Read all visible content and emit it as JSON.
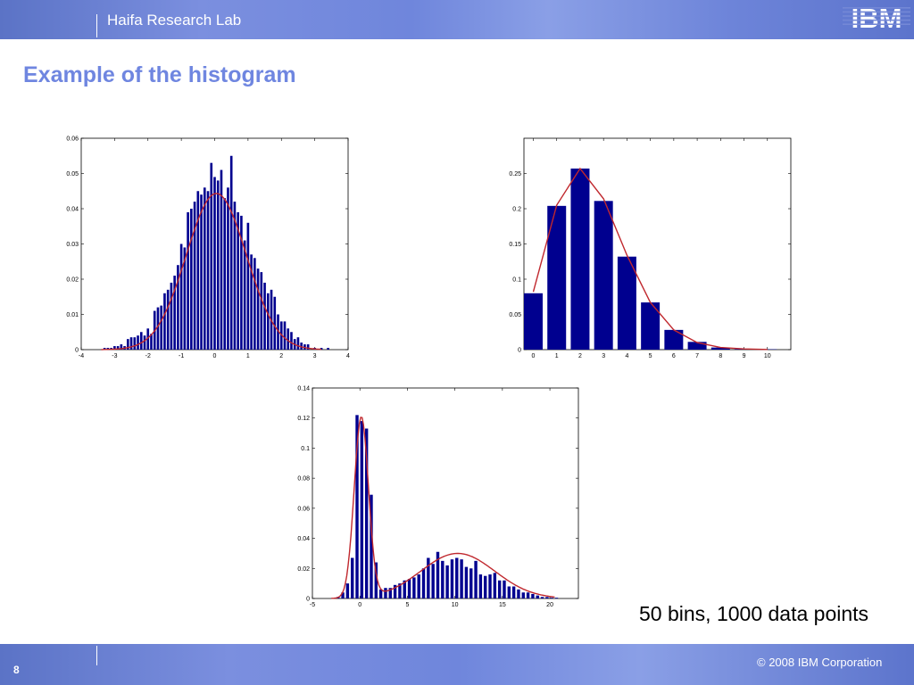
{
  "header": {
    "lab_name": "Haifa Research Lab",
    "logo_text": "IBM"
  },
  "slide": {
    "title": "Example of the histogram",
    "caption": "50 bins, 1000 data points"
  },
  "footer": {
    "page_number": "8",
    "copyright": "© 2008 IBM Corporation"
  },
  "colors": {
    "bar": "#00008f",
    "fit_line": "#c0282e",
    "title": "#6f86e0"
  },
  "chart_data": [
    {
      "type": "bar",
      "name": "normal-histogram",
      "xlim": [
        -4,
        4
      ],
      "ylim": [
        0,
        0.06
      ],
      "xticks": [
        -4,
        -3,
        -2,
        -1,
        0,
        1,
        2,
        3,
        4
      ],
      "yticks": [
        0,
        0.01,
        0.02,
        0.03,
        0.04,
        0.05,
        0.06
      ],
      "x": [
        -3.3,
        -3.2,
        -3.1,
        -3.0,
        -2.9,
        -2.8,
        -2.7,
        -2.6,
        -2.5,
        -2.4,
        -2.3,
        -2.2,
        -2.1,
        -2.0,
        -1.9,
        -1.8,
        -1.7,
        -1.6,
        -1.5,
        -1.4,
        -1.3,
        -1.2,
        -1.1,
        -1.0,
        -0.9,
        -0.8,
        -0.7,
        -0.6,
        -0.5,
        -0.4,
        -0.3,
        -0.2,
        -0.1,
        0.0,
        0.1,
        0.2,
        0.3,
        0.4,
        0.5,
        0.6,
        0.7,
        0.8,
        0.9,
        1.0,
        1.1,
        1.2,
        1.3,
        1.4,
        1.5,
        1.6,
        1.7,
        1.8,
        1.9,
        2.0,
        2.1,
        2.2,
        2.3,
        2.4,
        2.5,
        2.6,
        2.7,
        2.8,
        3.0,
        3.2,
        3.4
      ],
      "values": [
        0.0005,
        0.0005,
        0.0005,
        0.001,
        0.001,
        0.0015,
        0.001,
        0.003,
        0.0035,
        0.0035,
        0.004,
        0.005,
        0.004,
        0.006,
        0.0045,
        0.011,
        0.012,
        0.0125,
        0.016,
        0.017,
        0.019,
        0.021,
        0.024,
        0.03,
        0.029,
        0.039,
        0.04,
        0.042,
        0.045,
        0.044,
        0.046,
        0.045,
        0.053,
        0.049,
        0.048,
        0.051,
        0.043,
        0.046,
        0.055,
        0.042,
        0.039,
        0.038,
        0.031,
        0.036,
        0.027,
        0.026,
        0.023,
        0.022,
        0.019,
        0.016,
        0.017,
        0.015,
        0.01,
        0.008,
        0.008,
        0.006,
        0.005,
        0.003,
        0.0035,
        0.002,
        0.0015,
        0.0015,
        0.0005,
        0.0005,
        0.0005
      ],
      "bar_width": 0.07,
      "fit": {
        "kind": "normal",
        "mean": 0.05,
        "sd": 0.9,
        "scale": 0.1,
        "x_range": [
          -3.4,
          3.2
        ]
      }
    },
    {
      "type": "bar",
      "name": "poisson-histogram",
      "xlim": [
        -0.4,
        11
      ],
      "ylim": [
        0,
        0.3
      ],
      "xticks": [
        0,
        1,
        2,
        3,
        4,
        5,
        6,
        7,
        8,
        9,
        10
      ],
      "yticks": [
        0,
        0.05,
        0.1,
        0.15,
        0.2,
        0.25
      ],
      "x": [
        0,
        1,
        2,
        3,
        4,
        5,
        6,
        7,
        8,
        9,
        10
      ],
      "values": [
        0.08,
        0.204,
        0.257,
        0.211,
        0.132,
        0.067,
        0.028,
        0.011,
        0.003,
        0.001,
        0.0005
      ],
      "bar_width": 0.8,
      "fit": {
        "kind": "points",
        "x": [
          0,
          1,
          2,
          3,
          4,
          5,
          6,
          7,
          8,
          9,
          10
        ],
        "y": [
          0.082,
          0.205,
          0.257,
          0.214,
          0.134,
          0.067,
          0.028,
          0.01,
          0.003,
          0.001,
          0.0002
        ]
      }
    },
    {
      "type": "bar",
      "name": "mixture-histogram",
      "xlim": [
        -5,
        23
      ],
      "ylim": [
        0,
        0.14
      ],
      "xticks": [
        -5,
        0,
        5,
        10,
        15,
        20
      ],
      "yticks": [
        0,
        0.02,
        0.04,
        0.06,
        0.08,
        0.1,
        0.12,
        0.14
      ],
      "x": [
        -2.3,
        -1.8,
        -1.3,
        -0.8,
        -0.3,
        0.2,
        0.7,
        1.2,
        1.7,
        2.2,
        2.7,
        3.2,
        3.7,
        4.2,
        4.7,
        5.2,
        5.7,
        6.2,
        6.7,
        7.2,
        7.7,
        8.2,
        8.7,
        9.2,
        9.7,
        10.2,
        10.7,
        11.2,
        11.7,
        12.2,
        12.7,
        13.2,
        13.7,
        14.2,
        14.7,
        15.2,
        15.7,
        16.2,
        16.7,
        17.2,
        17.7,
        18.2,
        18.7,
        19.2,
        19.7,
        20.2,
        20.7
      ],
      "values": [
        0.001,
        0.004,
        0.01,
        0.027,
        0.122,
        0.118,
        0.113,
        0.069,
        0.024,
        0.006,
        0.007,
        0.007,
        0.009,
        0.01,
        0.012,
        0.013,
        0.014,
        0.016,
        0.02,
        0.027,
        0.023,
        0.031,
        0.025,
        0.022,
        0.026,
        0.027,
        0.026,
        0.021,
        0.02,
        0.025,
        0.016,
        0.015,
        0.016,
        0.017,
        0.012,
        0.012,
        0.008,
        0.008,
        0.006,
        0.004,
        0.004,
        0.003,
        0.002,
        0.001,
        0.001,
        0.0005,
        0.0005
      ],
      "bar_width": 0.32,
      "fit": {
        "kind": "mixture",
        "components": [
          {
            "mean": 0.15,
            "sd": 0.75,
            "scale": 0.2255
          },
          {
            "mean": 10.3,
            "sd": 3.9,
            "scale": 0.293
          }
        ],
        "x_range": [
          -3,
          20.5
        ]
      }
    }
  ]
}
